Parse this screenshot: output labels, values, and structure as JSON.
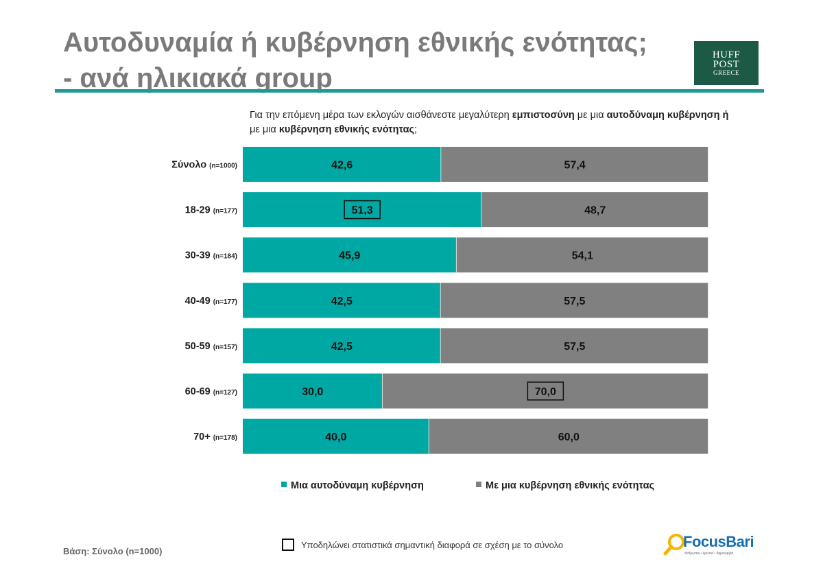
{
  "header": {
    "title_line1": "Αυτοδυναμία ή κυβέρνηση εθνικής ενότητας;",
    "title_line2": "- ανά ηλικιακά group",
    "logo": {
      "line1": "HUFF",
      "line2": "POST",
      "line3": "GREECE"
    },
    "rule_color": "#1e9a96"
  },
  "question": {
    "p1": "Για την επόμενη μέρα των εκλογών αισθάνεστε μεγαλύτερη ",
    "b1": "εμπιστοσύνη",
    "p2": " με μια ",
    "b2": "αυτοδύναμη κυβέρνηση ή",
    "p3": " με μια ",
    "b3": "κυβέρνηση εθνικής ενότητας",
    "p4": ";"
  },
  "chart_data": {
    "type": "bar",
    "orientation": "horizontal",
    "stacked": true,
    "title": "",
    "xlabel": "",
    "ylabel": "",
    "xlim": [
      0,
      100
    ],
    "grid": false,
    "legend_position": "bottom",
    "categories": [
      {
        "label": "Σύνολο",
        "n": "(n=1000)"
      },
      {
        "label": "18-29",
        "n": "(n=177)"
      },
      {
        "label": "30-39",
        "n": "(n=184)"
      },
      {
        "label": "40-49",
        "n": "(n=177)"
      },
      {
        "label": "50-59",
        "n": "(n=157)"
      },
      {
        "label": "60-69",
        "n": "(n=127)"
      },
      {
        "label": "70+",
        "n": "(n=178)"
      }
    ],
    "series": [
      {
        "name": "Μια αυτοδύναμη κυβέρνηση",
        "color": "#00a8a3",
        "values": [
          42.6,
          51.3,
          45.9,
          42.5,
          42.5,
          30.0,
          40.0
        ],
        "labels": [
          "42,6",
          "51,3",
          "45,9",
          "42,5",
          "42,5",
          "30,0",
          "40,0"
        ],
        "significant": [
          false,
          true,
          false,
          false,
          false,
          false,
          false
        ]
      },
      {
        "name": "Με μια κυβέρνηση εθνικής ενότητας",
        "color": "#808080",
        "values": [
          57.4,
          48.7,
          54.1,
          57.5,
          57.5,
          70.0,
          60.0
        ],
        "labels": [
          "57,4",
          "48,7",
          "54,1",
          "57,5",
          "57,5",
          "70,0",
          "60,0"
        ],
        "significant": [
          false,
          false,
          false,
          false,
          false,
          true,
          false
        ]
      }
    ]
  },
  "footer": {
    "note": "Υποδηλώνει στατιστικά σημαντική διαφορά σε σχέση με το σύνολο",
    "base": "Βάση: Σύνολο (n=1000)",
    "brand": "FocusBari",
    "brand_tagline": "άνθρωποι • έρευνα • δημιουργία",
    "brand_color": "#1a6fae",
    "brand_accent": "#f4b400"
  }
}
